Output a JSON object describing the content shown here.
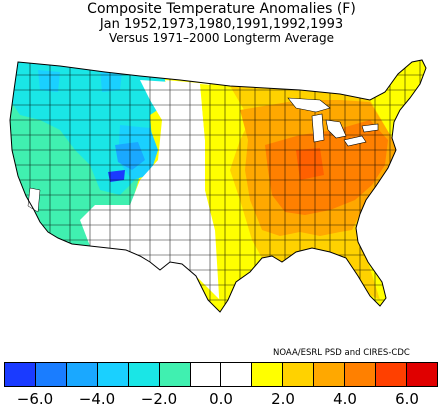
{
  "titles": {
    "line1": "Composite Temperature Anomalies (F)",
    "line2": "Jan  1952,1973,1980,1991,1992,1993",
    "line3": "Versus 1971–2000 Longterm Average"
  },
  "credit": "NOAA/ESRL PSD and CIRES-CDC",
  "legend": {
    "unit": "F",
    "colors": [
      "#1a3bff",
      "#1a7dff",
      "#1aa8ff",
      "#1ad0ff",
      "#1ae6e6",
      "#40f0b0",
      "#ffffff",
      "#ffffff",
      "#ffff00",
      "#ffd200",
      "#ffa800",
      "#ff8000",
      "#ff4000",
      "#e00000"
    ],
    "tick_labels": [
      {
        "label": "−6.0",
        "value": -6
      },
      {
        "label": "−4.0",
        "value": -4
      },
      {
        "label": "−2.0",
        "value": -2
      },
      {
        "label": "0.0",
        "value": 0
      },
      {
        "label": "2.0",
        "value": 2
      },
      {
        "label": "4.0",
        "value": 4
      },
      {
        "label": "6.0",
        "value": 6
      }
    ]
  },
  "map": {
    "region": "Contiguous United States climate divisions",
    "anomaly_pattern": {
      "northwest": "cool (-2 to -4 F)",
      "great_basin_wyoming": "cool (-4 to -5 F)",
      "southwest_plains": "near normal",
      "upper_midwest_south": "warm (+1 to +3 F)",
      "ohio_valley_mid_atlantic": "warm (+3 to +5 F)"
    }
  }
}
